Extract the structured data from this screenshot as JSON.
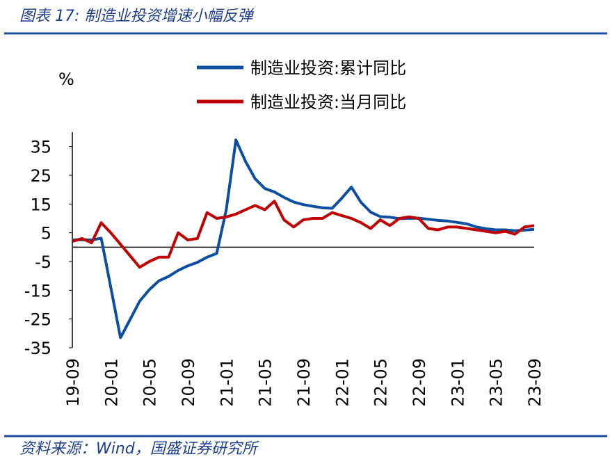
{
  "header": {
    "title": "图表 17:  制造业投资增速小幅反弹"
  },
  "chart_data": {
    "type": "line",
    "y_label": "%",
    "categories": [
      "19-09",
      null,
      null,
      null,
      "20-01",
      null,
      null,
      null,
      "20-05",
      null,
      null,
      null,
      "20-09",
      null,
      null,
      null,
      "21-01",
      null,
      null,
      null,
      "21-05",
      null,
      null,
      null,
      "21-09",
      null,
      null,
      null,
      "22-01",
      null,
      null,
      null,
      "22-05",
      null,
      null,
      null,
      "22-09",
      null,
      null,
      null,
      "23-01",
      null,
      null,
      null,
      "23-05",
      null,
      null,
      null,
      "23-09"
    ],
    "series": [
      {
        "name": "制造业投资:累计同比",
        "color": "#0b4ea2",
        "values": [
          2.5,
          2.6,
          2.5,
          3.1,
          -14,
          -31.5,
          -25.2,
          -18.8,
          -14.8,
          -11.7,
          -10.2,
          -8.1,
          -6.5,
          -5.3,
          -3.5,
          -2.2,
          13,
          37.3,
          29.8,
          23.8,
          20.4,
          19.2,
          17.3,
          15.7,
          14.8,
          14.2,
          13.7,
          13.5,
          17,
          20.9,
          15.6,
          12.2,
          10.6,
          10.4,
          9.9,
          10.0,
          10.1,
          9.7,
          9.3,
          9.1,
          8.6,
          8.1,
          7.0,
          6.4,
          6.0,
          6.0,
          5.7,
          5.9,
          6.2
        ]
      },
      {
        "name": "制造业投资:当月同比",
        "color": "#c00000",
        "values": [
          2,
          3,
          1.5,
          8.5,
          5,
          1,
          -3,
          -7,
          -5,
          -3.5,
          -3.5,
          5,
          2.5,
          3,
          12,
          10,
          10.5,
          11.5,
          13,
          14.5,
          13,
          16,
          9.5,
          7,
          9.5,
          10,
          10,
          12,
          11,
          10,
          8.5,
          6.5,
          9.5,
          7.5,
          10,
          10.5,
          10,
          6.5,
          6,
          7,
          7,
          6.5,
          6,
          5.5,
          5,
          5.5,
          4.5,
          7,
          7.5
        ]
      }
    ],
    "ylim": [
      -35,
      40
    ],
    "yticks": [
      35,
      25,
      15,
      5,
      -5,
      -15,
      -25,
      -35
    ]
  },
  "footer": {
    "source": "资料来源：Wind，国盛证券研究所"
  }
}
